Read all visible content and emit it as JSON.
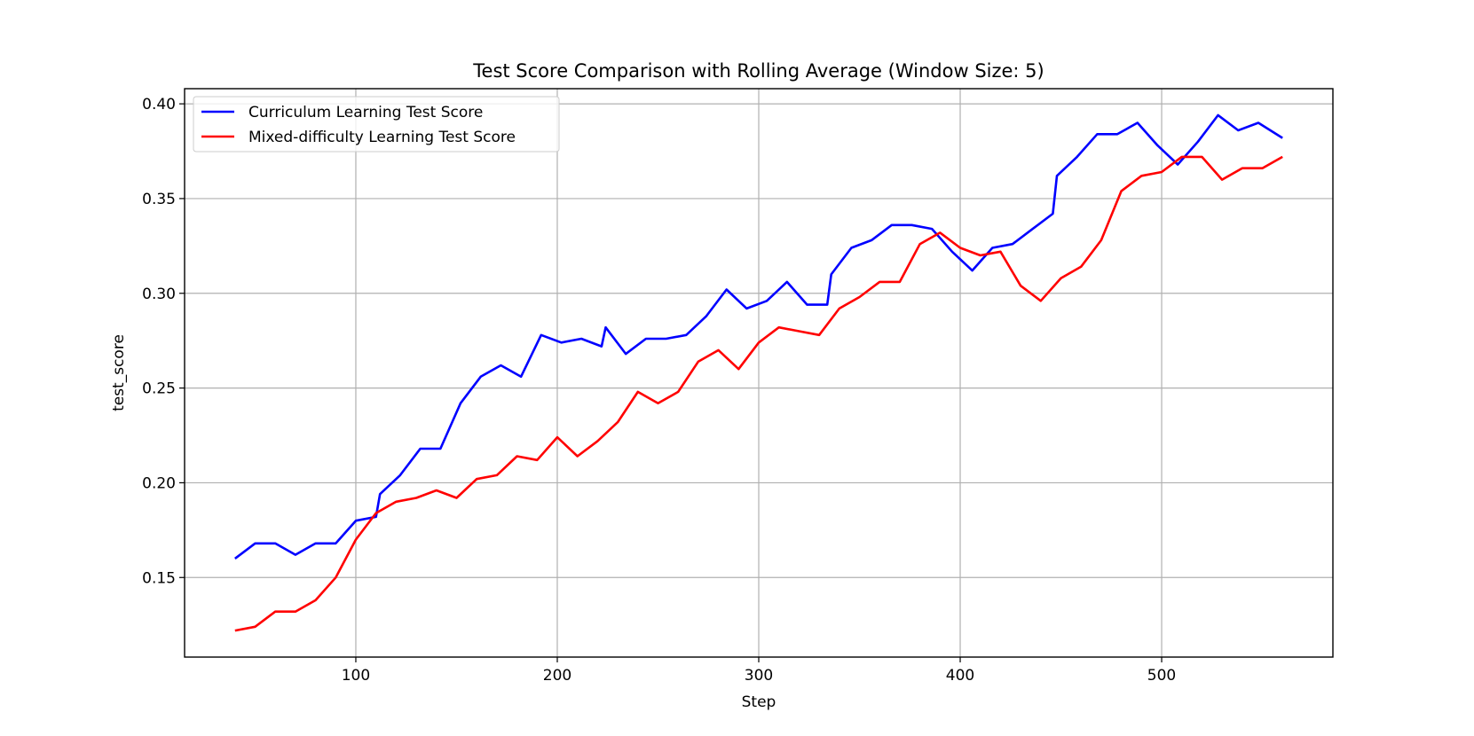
{
  "chart_data": {
    "type": "line",
    "title": "Test Score Comparison with Rolling Average (Window Size: 5)",
    "xlabel": "Step",
    "ylabel": "test_score",
    "xlim": [
      15,
      585
    ],
    "ylim": [
      0.108,
      0.408
    ],
    "xticks": [
      100,
      200,
      300,
      400,
      500
    ],
    "yticks": [
      0.15,
      0.2,
      0.25,
      0.3,
      0.35,
      0.4
    ],
    "xtick_labels": [
      "100",
      "200",
      "300",
      "400",
      "500"
    ],
    "ytick_labels": [
      "0.15",
      "0.20",
      "0.25",
      "0.30",
      "0.35",
      "0.40"
    ],
    "grid": true,
    "legend_position": "top-left",
    "series": [
      {
        "name": "Curriculum Learning Test Score",
        "color": "#0000ff",
        "x": [
          40,
          50,
          60,
          70,
          80,
          90,
          100,
          110,
          112,
          122,
          132,
          142,
          152,
          162,
          172,
          182,
          192,
          202,
          212,
          222,
          224,
          234,
          244,
          254,
          264,
          274,
          284,
          294,
          304,
          314,
          324,
          334,
          336,
          346,
          356,
          366,
          376,
          386,
          396,
          406,
          416,
          426,
          436,
          446,
          448,
          458,
          468,
          478,
          488,
          498,
          508,
          518,
          528,
          538,
          548,
          560
        ],
        "y": [
          0.16,
          0.168,
          0.168,
          0.162,
          0.168,
          0.168,
          0.18,
          0.182,
          0.194,
          0.204,
          0.218,
          0.218,
          0.242,
          0.256,
          0.262,
          0.256,
          0.278,
          0.274,
          0.276,
          0.272,
          0.282,
          0.268,
          0.276,
          0.276,
          0.278,
          0.288,
          0.302,
          0.292,
          0.296,
          0.306,
          0.294,
          0.294,
          0.31,
          0.324,
          0.328,
          0.336,
          0.336,
          0.334,
          0.322,
          0.312,
          0.324,
          0.326,
          0.334,
          0.342,
          0.362,
          0.372,
          0.384,
          0.384,
          0.39,
          0.378,
          0.368,
          0.38,
          0.394,
          0.386,
          0.39,
          0.382
        ]
      },
      {
        "name": "Mixed-difficulty Learning Test Score",
        "color": "#ff0000",
        "x": [
          40,
          50,
          60,
          70,
          80,
          90,
          100,
          110,
          120,
          130,
          140,
          150,
          160,
          170,
          180,
          190,
          200,
          210,
          220,
          230,
          240,
          250,
          260,
          270,
          280,
          290,
          300,
          310,
          320,
          330,
          340,
          350,
          360,
          370,
          380,
          390,
          400,
          410,
          420,
          430,
          440,
          450,
          460,
          470,
          480,
          490,
          500,
          510,
          520,
          530,
          540,
          550,
          560
        ],
        "y": [
          0.122,
          0.124,
          0.132,
          0.132,
          0.138,
          0.15,
          0.17,
          0.184,
          0.19,
          0.192,
          0.196,
          0.192,
          0.202,
          0.204,
          0.214,
          0.212,
          0.224,
          0.214,
          0.222,
          0.232,
          0.248,
          0.242,
          0.248,
          0.264,
          0.27,
          0.26,
          0.274,
          0.282,
          0.28,
          0.278,
          0.292,
          0.298,
          0.306,
          0.306,
          0.326,
          0.332,
          0.324,
          0.32,
          0.322,
          0.304,
          0.296,
          0.308,
          0.314,
          0.328,
          0.354,
          0.362,
          0.364,
          0.372,
          0.372,
          0.36,
          0.366,
          0.366,
          0.372
        ]
      }
    ]
  }
}
